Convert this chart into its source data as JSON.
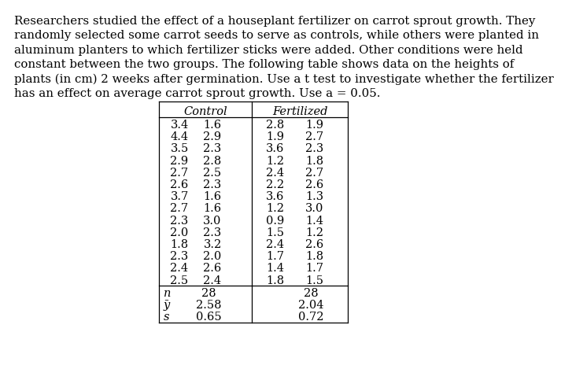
{
  "para_lines": [
    "Researchers studied the effect of a houseplant fertilizer on carrot sprout growth. They",
    "randomly selected some carrot seeds to serve as controls, while others were planted in",
    "aluminum planters to which fertilizer sticks were added. Other conditions were held",
    "constant between the two groups. The following table shows data on the heights of",
    "plants (in cm) 2 weeks after germination. Use a t test to investigate whether the fertilizer",
    "has an effect on average carrot sprout growth. Use a = 0.05."
  ],
  "col_headers": [
    "Control",
    "Fertilized"
  ],
  "control_data": [
    [
      "3.4",
      "1.6"
    ],
    [
      "4.4",
      "2.9"
    ],
    [
      "3.5",
      "2.3"
    ],
    [
      "2.9",
      "2.8"
    ],
    [
      "2.7",
      "2.5"
    ],
    [
      "2.6",
      "2.3"
    ],
    [
      "3.7",
      "1.6"
    ],
    [
      "2.7",
      "1.6"
    ],
    [
      "2.3",
      "3.0"
    ],
    [
      "2.0",
      "2.3"
    ],
    [
      "1.8",
      "3.2"
    ],
    [
      "2.3",
      "2.0"
    ],
    [
      "2.4",
      "2.6"
    ],
    [
      "2.5",
      "2.4"
    ]
  ],
  "fertilized_data": [
    [
      "2.8",
      "1.9"
    ],
    [
      "1.9",
      "2.7"
    ],
    [
      "3.6",
      "2.3"
    ],
    [
      "1.2",
      "1.8"
    ],
    [
      "2.4",
      "2.7"
    ],
    [
      "2.2",
      "2.6"
    ],
    [
      "3.6",
      "1.3"
    ],
    [
      "1.2",
      "3.0"
    ],
    [
      "0.9",
      "1.4"
    ],
    [
      "1.5",
      "1.2"
    ],
    [
      "2.4",
      "2.6"
    ],
    [
      "1.7",
      "1.8"
    ],
    [
      "1.4",
      "1.7"
    ],
    [
      "1.8",
      "1.5"
    ]
  ],
  "stat_labels": [
    "n",
    "ȳ",
    "s"
  ],
  "stat_ctrl_vals": [
    "28",
    "2.58",
    "0.65"
  ],
  "stat_fert_vals": [
    "28",
    "2.04",
    "0.72"
  ],
  "bg_color": "#ffffff",
  "text_color": "#000000",
  "para_fontsize": 10.8,
  "table_fontsize": 10.5,
  "stat_fontsize": 10.5
}
